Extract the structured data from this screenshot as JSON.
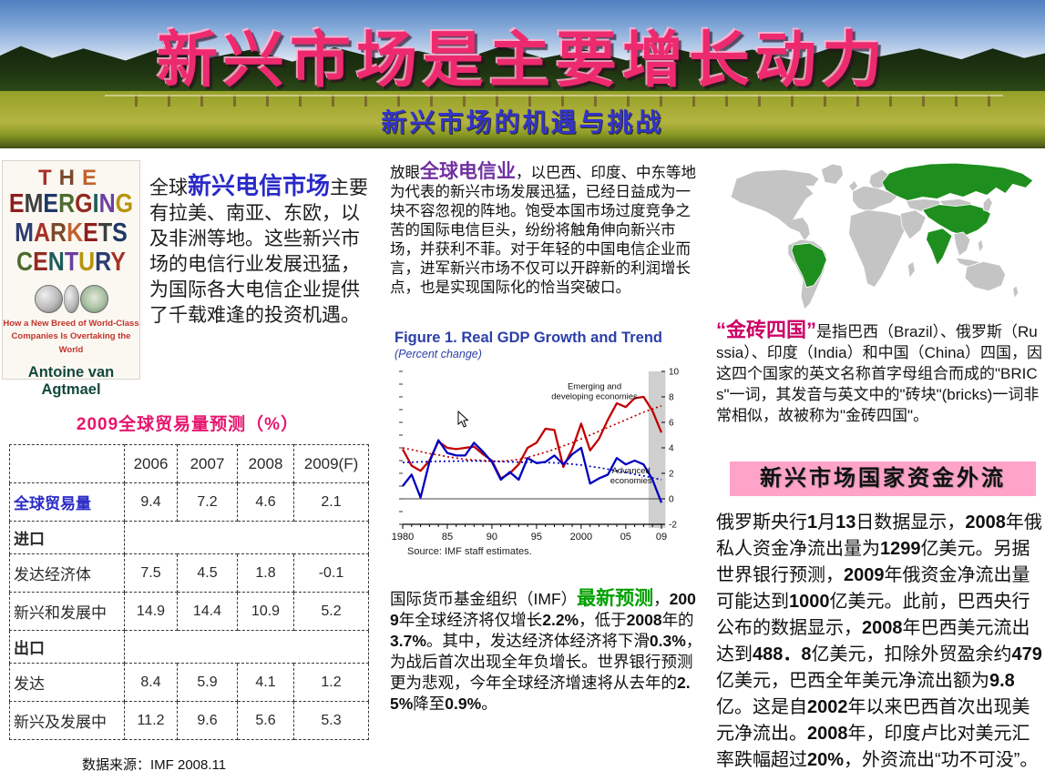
{
  "header": {
    "title": "新兴市场是主要增长动力",
    "subtitle": "新兴市场的机遇与挑战"
  },
  "book": {
    "line1": "THE",
    "line2": "EMERGING",
    "line3": "MARKETS",
    "line4": "CENTURY",
    "tagline1": "How a New Breed of World-Class",
    "tagline2": "Companies Is Overtaking the World",
    "author": "Antoine van Agtmael"
  },
  "left_text": {
    "prefix": "全球",
    "highlight": "新兴电信市场",
    "body": "主要有拉美、南亚、东欧，以及非洲等地。这些新兴市场的电信行业发展迅猛，为国际各大电信企业提供了千载难逢的投资机遇。"
  },
  "trade_table": {
    "title": "2009全球贸易量预测（%）",
    "columns": [
      "",
      "2006",
      "2007",
      "2008",
      "2009(F)"
    ],
    "rows": [
      {
        "label": "全球贸易量",
        "style": "blue",
        "values": [
          "9.4",
          "7.2",
          "4.6",
          "2.1"
        ]
      },
      {
        "label": "进口",
        "style": "section",
        "values": []
      },
      {
        "label": "发达经济体",
        "style": "",
        "values": [
          "7.5",
          "4.5",
          "1.8",
          "-0.1"
        ]
      },
      {
        "label": "新兴和发展中",
        "style": "",
        "values": [
          "14.9",
          "14.4",
          "10.9",
          "5.2"
        ]
      },
      {
        "label": "出口",
        "style": "section",
        "values": []
      },
      {
        "label": "发达",
        "style": "",
        "values": [
          "8.4",
          "5.9",
          "4.1",
          "1.2"
        ]
      },
      {
        "label": "新兴及发展中",
        "style": "",
        "values": [
          "11.2",
          "9.6",
          "5.6",
          "5.3"
        ]
      }
    ],
    "source": "数据来源：IMF 2008.11"
  },
  "middle": {
    "para1_prefix": "放眼",
    "para1_highlight": "全球电信业",
    "para1_body": "，以巴西、印度、中东等地为代表的新兴市场发展迅猛，已经日益成为一块不容忽视的阵地。饱受本国市场过度竞争之苦的国际电信巨头，纷纷将触角伸向新兴市场，并获利不菲。对于年轻的中国电信企业而言，进军新兴市场不仅可以开辟新的利润增长点，也是实现国际化的恰当突破口。",
    "para2_prefix": "国际货币基金组织（IMF）",
    "para2_highlight": "最新预测",
    "para2_body": "，2009年全球经济将仅增长2.2%，低于2008年的3.7%。其中，发达经济体经济将下滑0.3%，为战后首次出现全年负增长。世界银行预测更为悲观，今年全球经济增速将从去年的2.5%降至0.9%。"
  },
  "chart_data": {
    "type": "line",
    "title": "Figure 1.  Real GDP Growth and Trend",
    "subtitle": "(Percent change)",
    "source": "Source: IMF staff estimates.",
    "x_start": 1980,
    "x_end": 2009,
    "xtick_years": [
      1980,
      1985,
      1990,
      1995,
      2000,
      2005,
      2009
    ],
    "xtick_labels": [
      "1980",
      "85",
      "90",
      "95",
      "2000",
      "05",
      "09"
    ],
    "ylim": [
      -2,
      10
    ],
    "yticks": [
      -2,
      0,
      2,
      4,
      6,
      8,
      10
    ],
    "grid": false,
    "forecast_band_years": [
      2007.55,
      2009.45
    ],
    "series": [
      {
        "name": "Emerging and developing economies",
        "style": "solid",
        "color": "#c00000",
        "values": [
          3.9,
          2.6,
          2.2,
          3.0,
          4.5,
          4.0,
          3.9,
          4.0,
          4.1,
          3.5,
          3.0,
          1.6,
          2.0,
          2.7,
          4.0,
          4.4,
          5.5,
          5.4,
          2.5,
          3.9,
          5.9,
          3.8,
          4.7,
          6.2,
          7.5,
          7.2,
          7.9,
          8.0,
          6.9,
          5.2
        ]
      },
      {
        "name": "Advanced economies",
        "style": "solid",
        "color": "#0000c0",
        "values": [
          1.0,
          1.9,
          0.1,
          2.9,
          4.6,
          3.6,
          3.4,
          3.4,
          4.4,
          3.7,
          2.9,
          1.5,
          2.1,
          1.5,
          3.2,
          2.8,
          2.9,
          3.4,
          2.7,
          3.5,
          4.0,
          1.2,
          1.6,
          1.9,
          3.2,
          2.7,
          3.0,
          2.7,
          1.5,
          -0.3
        ]
      },
      {
        "name": "Emerging and developing economies trend",
        "style": "dotted",
        "color": "#c00000",
        "values": [
          4.0,
          3.85,
          3.7,
          3.55,
          3.45,
          3.3,
          3.2,
          3.1,
          3.05,
          3.0,
          2.95,
          2.95,
          3.0,
          3.1,
          3.25,
          3.45,
          3.65,
          3.9,
          4.15,
          4.4,
          4.7,
          5.0,
          5.3,
          5.6,
          5.9,
          6.2,
          6.5,
          6.8,
          7.05,
          7.3
        ]
      },
      {
        "name": "Advanced economies trend",
        "style": "dotted",
        "color": "#0000c0",
        "values": [
          2.85,
          2.87,
          2.9,
          2.92,
          2.94,
          2.95,
          2.96,
          2.97,
          2.97,
          2.96,
          2.95,
          2.93,
          2.9,
          2.88,
          2.87,
          2.86,
          2.85,
          2.82,
          2.78,
          2.72,
          2.65,
          2.55,
          2.45,
          2.32,
          2.2,
          2.07,
          1.93,
          1.8,
          1.65,
          1.5
        ]
      }
    ],
    "annotations": [
      {
        "lines": [
          "Emerging and",
          "developing economies"
        ],
        "x": 2001.5,
        "y": 8.6
      },
      {
        "lines": [
          "Advanced",
          "economies"
        ],
        "x": 2005.6,
        "y": 2.0
      }
    ]
  },
  "right": {
    "bric_highlight": "“金砖四国”",
    "bric_body": "是指巴西（Brazil）、俄罗斯（Russia）、印度（India）和中国（China）四国，因这四个国家的英文名称首字母组合而成的\"BRICs\"一词，其发音与英文中的\"砖块\"(bricks)一词非常相似，故被称为\"金砖四国\"。",
    "banner": "新兴市场国家资金外流",
    "outflow_text": "俄罗斯央行1月13日数据显示，2008年俄私人资金净流出量为1299亿美元。另据世界银行预测，2009年俄资金净流出量可能达到1000亿美元。此前，巴西央行公布的数据显示，2008年巴西美元流出达到488．8亿美元，扣除外贸盈余约479亿美元，巴西全年美元净流出额为9.8亿。这是自2002年以来巴西首次出现美元净流出。2008年，印度卢比对美元汇率跌幅超过20%，外资流出“功不可没”。"
  },
  "colors": {
    "title_pink": "#ee2a6e",
    "subtitle_blue": "#3333cc",
    "telecom_blue": "#2a2ac8",
    "telecom_purple": "#7030a0",
    "forecast_green": "#00a000",
    "bric_crimson": "#cc0066",
    "banner_pink": "#ffa3c8",
    "table_title_pink": "#e6156e",
    "table_label_blue": "#2a2ac8",
    "fig_blue": "#2b3fa8",
    "map_green": "#1e8f1e",
    "map_gray": "#c4c4c4",
    "chart_red": "#c00000",
    "chart_blue": "#0000c0"
  }
}
